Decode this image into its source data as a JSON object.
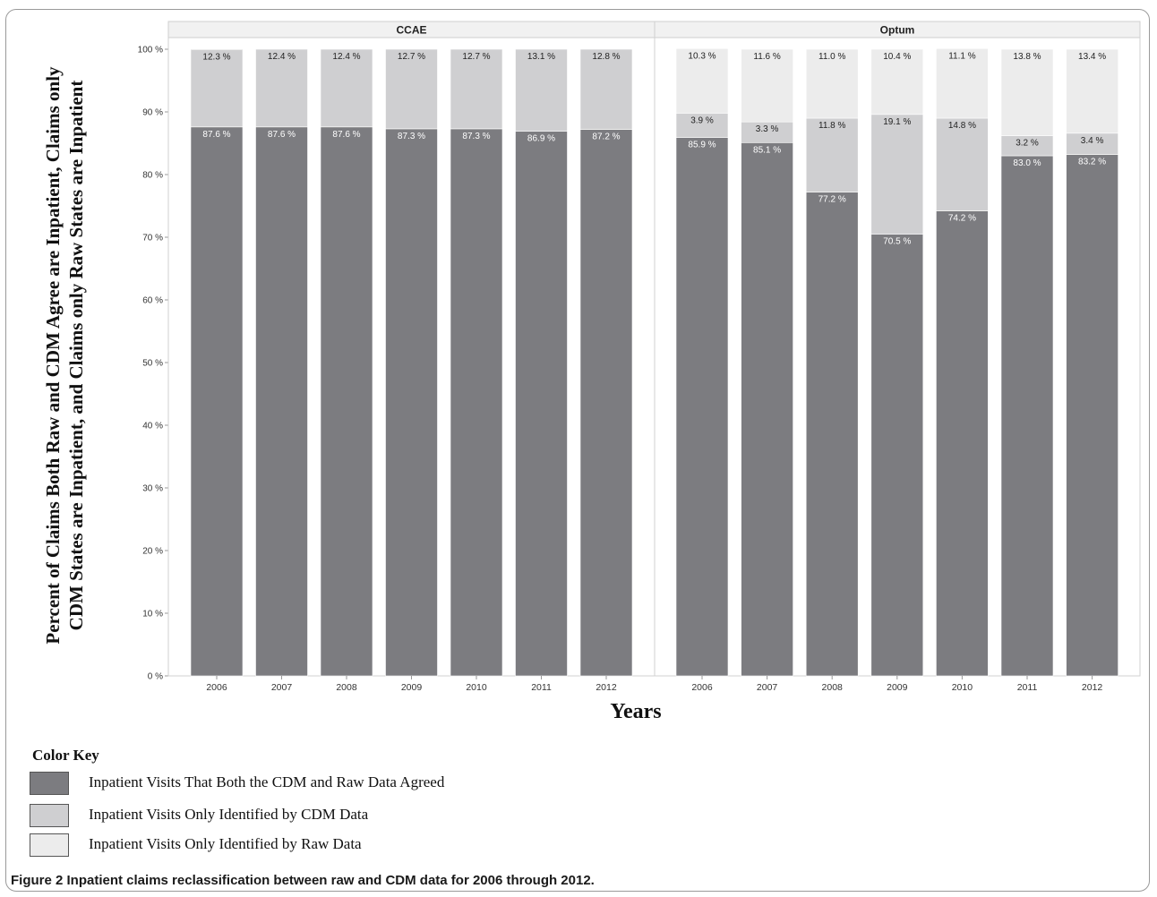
{
  "chart_data": {
    "type": "bar",
    "stacked": true,
    "y_axis_label": "Percent of Claims Both Raw and CDM Agree are Inpatient, Claims only CDM States are Inpatient, and Claims only Raw States are Inpatient",
    "xlabel": "Years",
    "ylim": [
      0,
      100
    ],
    "y_ticks": [
      "0 %",
      "10 %",
      "20 %",
      "30 %",
      "40 %",
      "50 %",
      "60 %",
      "70 %",
      "80 %",
      "90 %",
      "100 %"
    ],
    "colors": {
      "agreed": "#7c7c80",
      "cdm_only": "#cfcfd1",
      "raw_only": "#ececec"
    },
    "panels": [
      {
        "name": "CCAE",
        "categories": [
          "2006",
          "2007",
          "2008",
          "2009",
          "2010",
          "2011",
          "2012"
        ],
        "series": [
          {
            "key": "agreed",
            "values": [
              87.6,
              87.6,
              87.6,
              87.3,
              87.3,
              86.9,
              87.2
            ],
            "labels": [
              "87.6 %",
              "87.6 %",
              "87.6 %",
              "87.3 %",
              "87.3 %",
              "86.9 %",
              "87.2 %"
            ]
          },
          {
            "key": "cdm_only",
            "values": [
              12.3,
              12.4,
              12.4,
              12.7,
              12.7,
              13.1,
              12.8
            ],
            "labels": [
              "12.3 %",
              "12.4 %",
              "12.4 %",
              "12.7 %",
              "12.7 %",
              "13.1 %",
              "12.8 %"
            ]
          }
        ]
      },
      {
        "name": "Optum",
        "categories": [
          "2006",
          "2007",
          "2008",
          "2009",
          "2010",
          "2011",
          "2012"
        ],
        "series": [
          {
            "key": "agreed",
            "values": [
              85.9,
              85.1,
              77.2,
              70.5,
              74.2,
              83.0,
              83.2
            ],
            "labels": [
              "85.9 %",
              "85.1 %",
              "77.2 %",
              "70.5 %",
              "74.2 %",
              "83.0 %",
              "83.2 %"
            ]
          },
          {
            "key": "cdm_only",
            "values": [
              3.9,
              3.3,
              11.8,
              19.1,
              14.8,
              3.2,
              3.4
            ],
            "labels": [
              "3.9 %",
              "3.3 %",
              "11.8 %",
              "19.1 %",
              "14.8 %",
              "3.2 %",
              "3.4 %"
            ]
          },
          {
            "key": "raw_only",
            "values": [
              10.3,
              11.6,
              11.0,
              10.4,
              11.1,
              13.8,
              13.4
            ],
            "labels": [
              "10.3 %",
              "11.6 %",
              "11.0 %",
              "10.4 %",
              "11.1 %",
              "13.8 %",
              "13.4 %"
            ]
          }
        ]
      }
    ]
  },
  "legend": {
    "title": "Color Key",
    "items": [
      {
        "label": "Inpatient Visits That Both the CDM and Raw Data Agreed",
        "color": "#7c7c80"
      },
      {
        "label": "Inpatient Visits Only Identified by CDM Data",
        "color": "#cfcfd1"
      },
      {
        "label": "Inpatient Visits Only Identified by Raw Data",
        "color": "#ececec"
      }
    ]
  },
  "caption": "Figure 2 Inpatient claims reclassification between raw and CDM data for 2006 through 2012."
}
